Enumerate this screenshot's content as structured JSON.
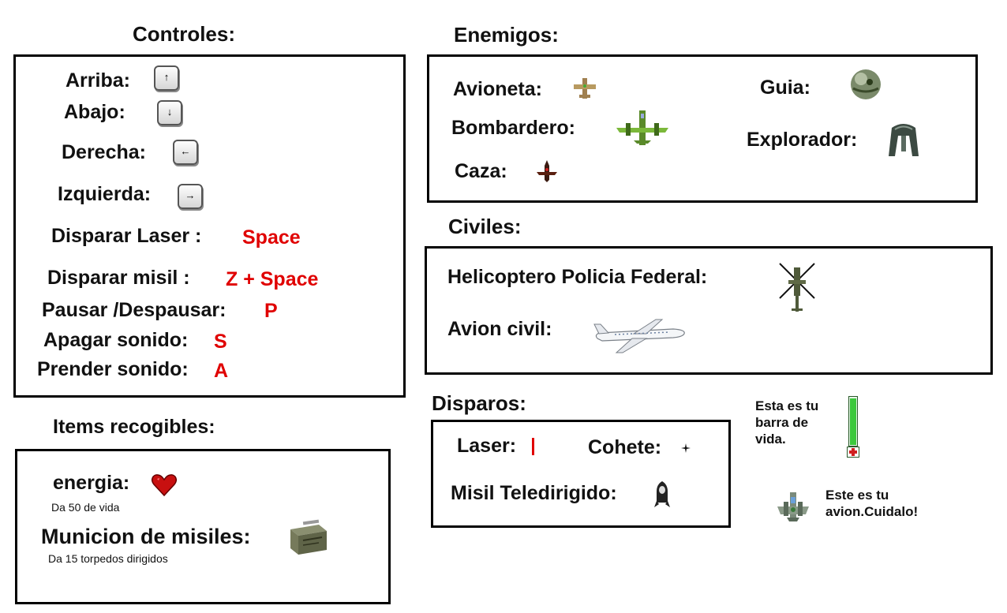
{
  "controls": {
    "title": "Controles:",
    "up": {
      "label": "Arriba:",
      "key": "↑"
    },
    "down": {
      "label": "Abajo:",
      "key": "↓"
    },
    "right": {
      "label": "Derecha:",
      "key": "←"
    },
    "left": {
      "label": "Izquierda:",
      "key": "→"
    },
    "laser": {
      "label": "Disparar Laser :",
      "key": "Space"
    },
    "missile": {
      "label": "Disparar misil :",
      "key": "Z + Space"
    },
    "pause": {
      "label": "Pausar /Despausar:",
      "key": "P"
    },
    "sound_off": {
      "label": "Apagar sonido:",
      "key": "S"
    },
    "sound_on": {
      "label": "Prender sonido:",
      "key": "A"
    }
  },
  "items": {
    "title": "Items recogibles:",
    "energy": {
      "label": "energia:",
      "desc": "Da 50 de vida",
      "icon": "heart-icon"
    },
    "ammo": {
      "label": "Municion de misiles:",
      "desc": "Da 15 torpedos dirigidos",
      "icon": "ammo-box-icon"
    }
  },
  "enemies": {
    "title": "Enemigos:",
    "avioneta": "Avioneta:",
    "bombardero": "Bombardero:",
    "caza": "Caza:",
    "guia": "Guia:",
    "explorador": "Explorador:"
  },
  "civilians": {
    "title": "Civiles:",
    "helicopter": "Helicoptero Policia Federal:",
    "airliner": "Avion civil:"
  },
  "shots": {
    "title": "Disparos:",
    "laser": "Laser:",
    "rocket": "Cohete:",
    "guided": "Misil Teledirigido:"
  },
  "health": {
    "text": "Esta es tu barra de vida.",
    "level": 1.0
  },
  "player": {
    "text": "Este es tu avion.Cuidalo!"
  },
  "colors": {
    "accent_red": "#e00000",
    "health_green": "#3cc83c"
  }
}
